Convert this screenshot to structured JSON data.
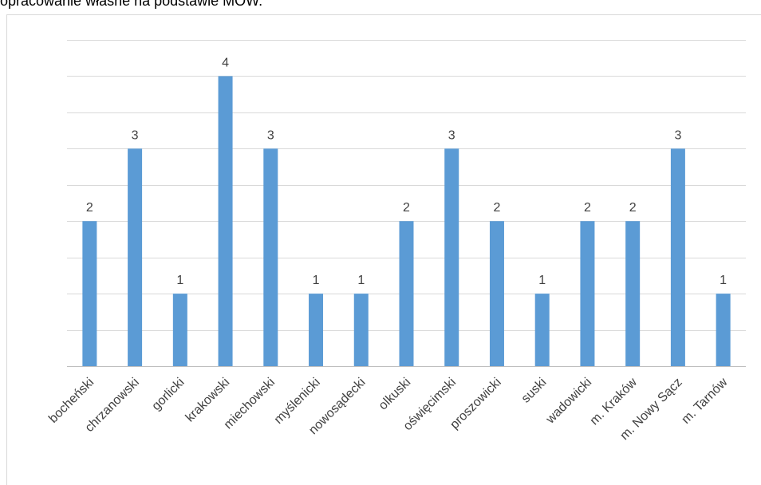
{
  "caption": "opracowanie własne na podstawie MOW.",
  "chart_data": {
    "type": "bar",
    "title": "",
    "xlabel": "",
    "ylabel": "",
    "ylim": [
      0,
      4.5
    ],
    "gridlines": [
      0,
      0.5,
      1,
      1.5,
      2,
      2.5,
      3,
      3.5,
      4,
      4.5
    ],
    "grid": true,
    "legend": "none",
    "bar_color": "#5b9bd5",
    "categories": [
      "bocheński",
      "chrzanowski",
      "gorlicki",
      "krakowski",
      "miechowski",
      "myślenicki",
      "nowosądecki",
      "olkuski",
      "oświęcimski",
      "proszowicki",
      "suski",
      "wadowicki",
      "m. Kraków",
      "m. Nowy Sącz",
      "m. Tarnów"
    ],
    "values": [
      2,
      3,
      1,
      4,
      3,
      1,
      1,
      2,
      3,
      2,
      1,
      2,
      2,
      3,
      1
    ]
  }
}
